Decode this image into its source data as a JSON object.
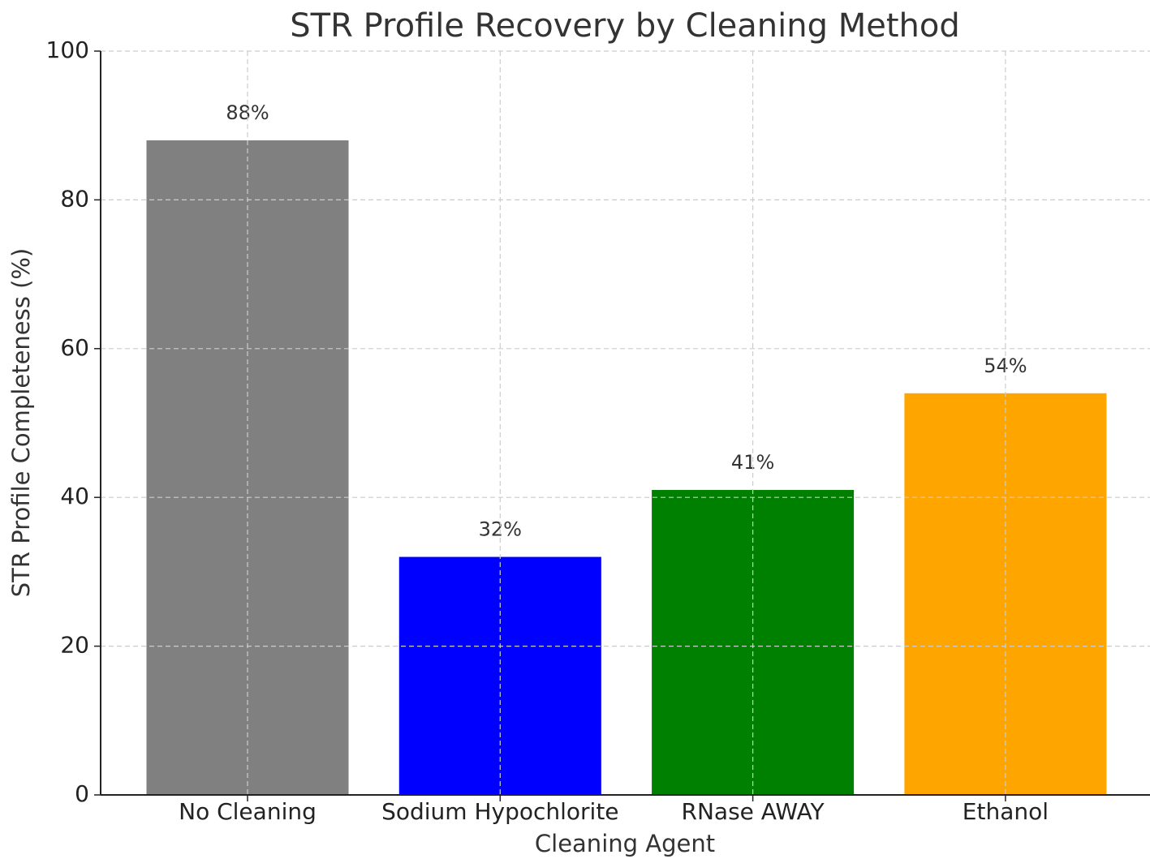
{
  "chart_data": {
    "type": "bar",
    "title": "STR Profile Recovery by Cleaning Method",
    "x_label": "Cleaning Agent",
    "y_label": "STR Profile Completeness (%)",
    "categories": [
      "No Cleaning",
      "Sodium Hypochlorite",
      "RNase AWAY",
      "Ethanol"
    ],
    "values": [
      88,
      32,
      41,
      54
    ],
    "value_labels": [
      "88%",
      "32%",
      "41%",
      "54%"
    ],
    "colors": [
      "#808080",
      "#0000ff",
      "#008000",
      "#ffa500"
    ],
    "ylim": [
      0,
      100
    ],
    "yticks": [
      0,
      20,
      40,
      60,
      80,
      100
    ],
    "grid": true
  }
}
